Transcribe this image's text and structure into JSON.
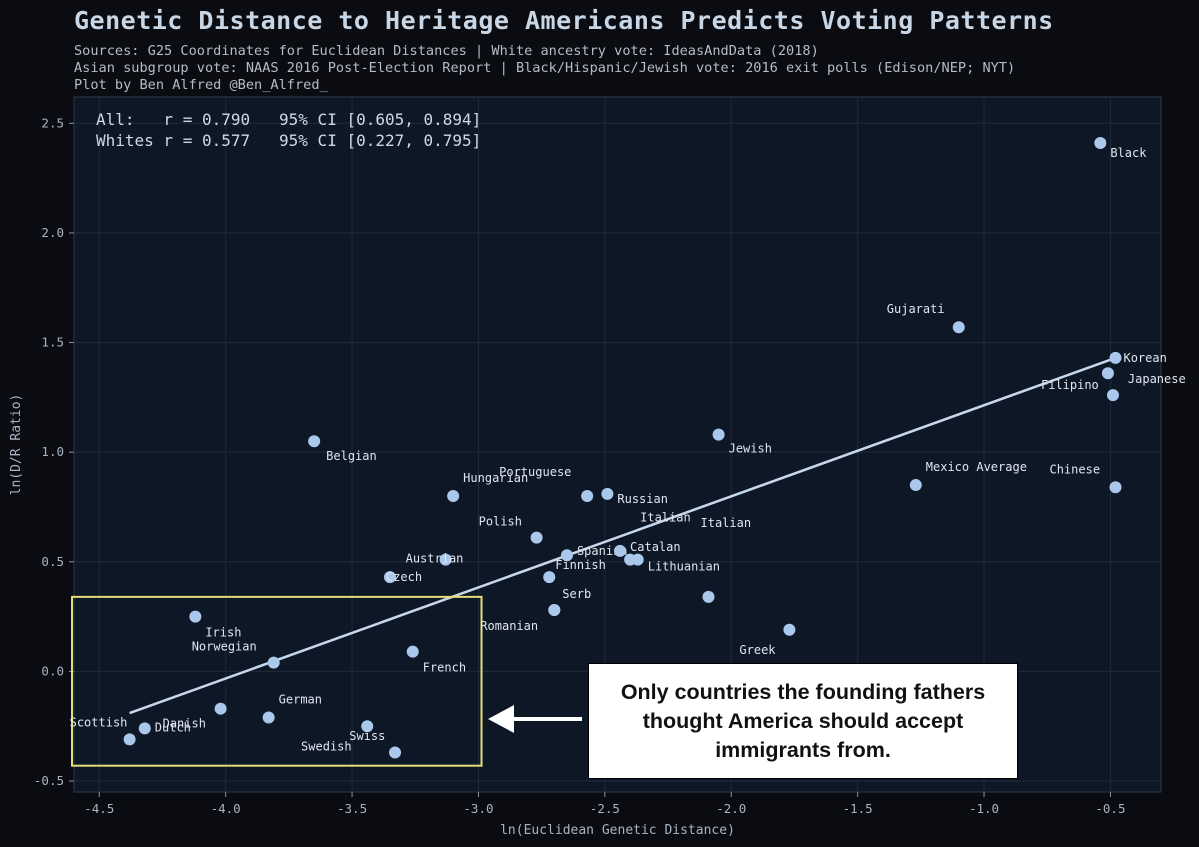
{
  "title": "Genetic Distance to Heritage Americans Predicts Voting Patterns",
  "sources": [
    "Sources: G25 Coordinates for Euclidean Distances | White ancestry vote: IdeasAndData (2018)",
    "Asian subgroup vote: NAAS 2016 Post-Election Report | Black/Hispanic/Jewish vote: 2016 exit polls (Edison/NEP; NYT)",
    "Plot by Ben Alfred @Ben_Alfred_"
  ],
  "stats": [
    "All:   r = 0.790   95% CI [0.605, 0.894]",
    "Whites r = 0.577   95% CI [0.227, 0.795]"
  ],
  "callout": "Only countries the founding fathers thought America should accept immigrants from.",
  "highlight_region": {
    "x_range": [
      -4.6,
      -2.98
    ],
    "y_range": [
      -0.43,
      0.34
    ]
  },
  "colors": {
    "background": "#0a0c12",
    "plot_bg": "#0e1726",
    "point": "#a9c8ec",
    "line": "#c5d8ec",
    "highlight": "#e6dc78"
  },
  "chart_data": {
    "type": "scatter",
    "title": "Genetic Distance to Heritage Americans Predicts Voting Patterns",
    "xlabel": "ln(Euclidean Genetic Distance)",
    "ylabel": "ln(D/R Ratio)",
    "xlim": [
      -4.6,
      -0.3
    ],
    "ylim": [
      -0.55,
      2.62
    ],
    "xticks": [
      -4.5,
      -4.0,
      -3.5,
      -3.0,
      -2.5,
      -2.0,
      -1.5,
      -1.0,
      -0.5
    ],
    "yticks": [
      -0.5,
      0.0,
      0.5,
      1.0,
      1.5,
      2.0,
      2.5
    ],
    "grid": true,
    "regression_line": {
      "x": [
        -4.38,
        -0.48
      ],
      "y": [
        -0.19,
        1.43
      ]
    },
    "points": [
      {
        "label": "Black",
        "x": -0.54,
        "y": 2.41
      },
      {
        "label": "Gujarati",
        "x": -1.1,
        "y": 1.57
      },
      {
        "label": "Korean",
        "x": -0.48,
        "y": 1.43
      },
      {
        "label": "Japanese",
        "x": -0.51,
        "y": 1.36
      },
      {
        "label": "Filipino",
        "x": -0.49,
        "y": 1.26
      },
      {
        "label": "Chinese",
        "x": -0.48,
        "y": 0.84
      },
      {
        "label": "Jewish",
        "x": -2.05,
        "y": 1.08
      },
      {
        "label": "Mexico Average",
        "x": -1.27,
        "y": 0.85
      },
      {
        "label": "Belgian",
        "x": -3.65,
        "y": 1.05
      },
      {
        "label": "Hungarian",
        "x": -3.1,
        "y": 0.8
      },
      {
        "label": "Portuguese",
        "x": -2.57,
        "y": 0.8
      },
      {
        "label": "Russian",
        "x": -2.49,
        "y": 0.81
      },
      {
        "label": "Polish",
        "x": -2.77,
        "y": 0.61
      },
      {
        "label": "Spanish",
        "x": -2.65,
        "y": 0.53
      },
      {
        "label": "Catalan",
        "x": -2.44,
        "y": 0.55
      },
      {
        "label": "Lithuanian",
        "x": -2.37,
        "y": 0.51
      },
      {
        "label": "Austrian",
        "x": -3.13,
        "y": 0.51
      },
      {
        "label": "Czech",
        "x": -3.35,
        "y": 0.43
      },
      {
        "label": "Finnish",
        "x": -2.72,
        "y": 0.43
      },
      {
        "label": "Italian",
        "x": -2.4,
        "y": 0.51
      },
      {
        "label": "Serb",
        "x": -2.7,
        "y": 0.28
      },
      {
        "label": "Romanian",
        "x": -2.7,
        "y": 0.28
      },
      {
        "label": "Greek",
        "x": -1.77,
        "y": 0.19
      },
      {
        "label": "Irish",
        "x": -4.12,
        "y": 0.25
      },
      {
        "label": "Norwegian",
        "x": -3.81,
        "y": 0.04
      },
      {
        "label": "French",
        "x": -3.26,
        "y": 0.09
      },
      {
        "label": "German",
        "x": -3.83,
        "y": -0.21
      },
      {
        "label": "Danish",
        "x": -4.02,
        "y": -0.17
      },
      {
        "label": "Scottish",
        "x": -4.38,
        "y": -0.31
      },
      {
        "label": "Dutch",
        "x": -4.32,
        "y": -0.26
      },
      {
        "label": "Swiss",
        "x": -3.44,
        "y": -0.25
      },
      {
        "label": "Swedish",
        "x": -3.33,
        "y": -0.37
      },
      {
        "label": "Italian",
        "x": -2.09,
        "y": 0.34
      }
    ]
  }
}
